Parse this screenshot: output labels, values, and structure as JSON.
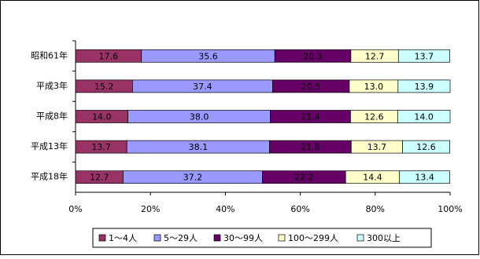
{
  "chart_data": {
    "type": "stacked-bar-horizontal",
    "categories": [
      "昭和61年",
      "平成3年",
      "平成8年",
      "平成13年",
      "平成18年"
    ],
    "series": [
      {
        "name": "1～4人",
        "color": "#993366",
        "values": [
          17.6,
          15.2,
          14.0,
          13.7,
          12.7
        ],
        "value_labels": [
          "17.6",
          "15.2",
          "14.0",
          "13.7",
          "12.7"
        ]
      },
      {
        "name": "5～29人",
        "color": "#9999ff",
        "values": [
          35.6,
          37.4,
          38.0,
          38.1,
          37.2
        ],
        "value_labels": [
          "35.6",
          "37.4",
          "38.0",
          "38.1",
          "37.2"
        ]
      },
      {
        "name": "30～99人",
        "color": "#660066",
        "values": [
          20.3,
          20.5,
          21.4,
          21.8,
          22.2
        ],
        "value_labels": [
          "20.3",
          "20.5",
          "21.4",
          "21.8",
          "22.2"
        ]
      },
      {
        "name": "100～299人",
        "color": "#ffffcc",
        "values": [
          12.7,
          13.0,
          12.6,
          13.7,
          14.4
        ],
        "value_labels": [
          "12.7",
          "13.0",
          "12.6",
          "13.7",
          "14.4"
        ]
      },
      {
        "name": "300以上",
        "color": "#ccffff",
        "values": [
          13.7,
          13.9,
          14.0,
          12.6,
          13.4
        ],
        "value_labels": [
          "13.7",
          "13.9",
          "14.0",
          "12.6",
          "13.4"
        ]
      }
    ],
    "xlim": [
      0,
      100
    ],
    "xticks": [
      {
        "value": 0,
        "label": "0%"
      },
      {
        "value": 20,
        "label": "20%"
      },
      {
        "value": 40,
        "label": "40%"
      },
      {
        "value": 60,
        "label": "60%"
      },
      {
        "value": 80,
        "label": "80%"
      },
      {
        "value": 100,
        "label": "100%"
      }
    ],
    "legend": "bottom"
  }
}
